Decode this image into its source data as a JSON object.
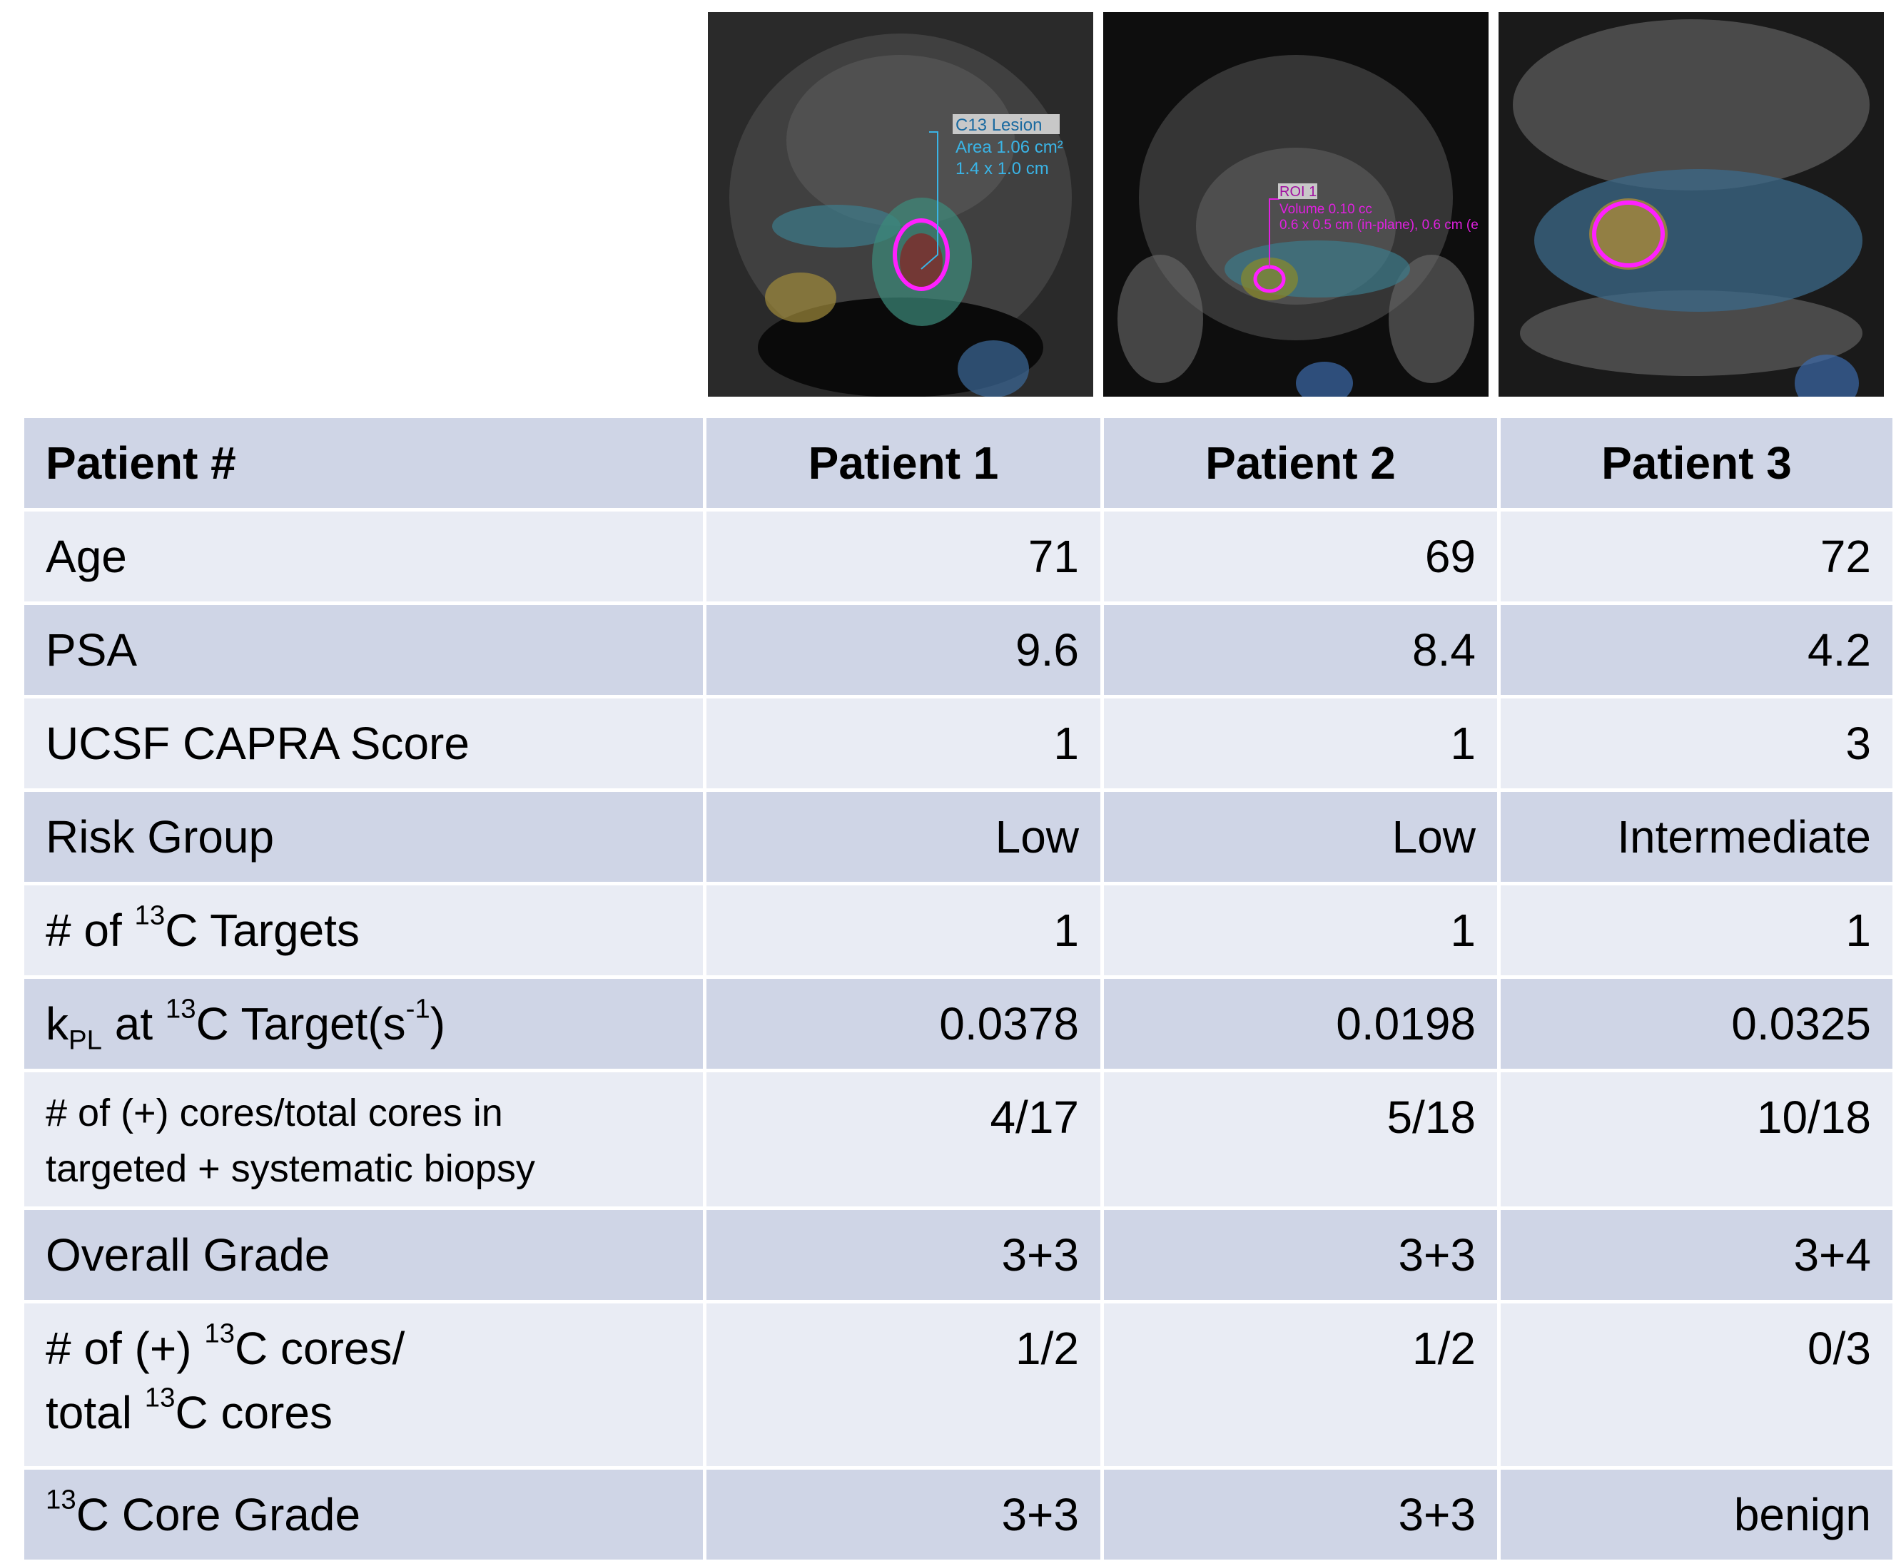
{
  "images": [
    {
      "annotations": [
        "C13 Lesion",
        "Area 1.06 cm²",
        "1.4 x 1.0 cm"
      ]
    },
    {
      "annotations": [
        "ROI 1",
        "Volume 0.10 cc",
        "0.6 x 0.5 cm (in-plane), 0.6 cm (e"
      ]
    },
    {
      "annotations": []
    }
  ],
  "table": {
    "header": [
      "Patient #",
      "Patient 1",
      "Patient 2",
      "Patient 3"
    ],
    "rows": [
      {
        "label": [
          [
            {
              "text": "Age"
            }
          ]
        ],
        "values": [
          71,
          69,
          72
        ]
      },
      {
        "label": [
          [
            {
              "text": "PSA"
            }
          ]
        ],
        "values": [
          9.6,
          8.4,
          4.2
        ]
      },
      {
        "label": [
          [
            {
              "text": "UCSF CAPRA Score"
            }
          ]
        ],
        "values": [
          1,
          1,
          3
        ]
      },
      {
        "label": [
          [
            {
              "text": "Risk Group"
            }
          ]
        ],
        "values": [
          "Low",
          "Low",
          "Intermediate"
        ]
      },
      {
        "label": [
          [
            {
              "text": "# of "
            },
            {
              "text": "13",
              "style": "sup"
            },
            {
              "text": "C Targets"
            }
          ]
        ],
        "values": [
          1,
          1,
          1
        ]
      },
      {
        "label": [
          [
            {
              "text": "k"
            },
            {
              "text": "PL",
              "style": "sub"
            },
            {
              "text": " at "
            },
            {
              "text": "13",
              "style": "sup"
            },
            {
              "text": "C Target(s"
            },
            {
              "text": "-1",
              "style": "sup"
            },
            {
              "text": ")"
            }
          ]
        ],
        "values": [
          0.0378,
          0.0198,
          0.0325
        ]
      },
      {
        "label": [
          [
            {
              "text": "# of (+) cores/total cores in"
            }
          ],
          [
            {
              "text": "targeted + systematic biopsy"
            }
          ]
        ],
        "values": [
          "4/17",
          "5/18",
          "10/18"
        ]
      },
      {
        "label": [
          [
            {
              "text": "Overall Grade"
            }
          ]
        ],
        "values": [
          "3+3",
          "3+3",
          "3+4"
        ]
      },
      {
        "label": [
          [
            {
              "text": "# of (+) "
            },
            {
              "text": "13",
              "style": "sup"
            },
            {
              "text": "C cores/"
            }
          ],
          [
            {
              "text": "total "
            },
            {
              "text": "13",
              "style": "sup"
            },
            {
              "text": "C cores"
            }
          ]
        ],
        "values": [
          "1/2",
          "1/2",
          "0/3"
        ]
      },
      {
        "label": [
          [
            {
              "text": "13",
              "style": "sup"
            },
            {
              "text": "C Core Grade"
            }
          ]
        ],
        "values": [
          "3+3",
          "3+3",
          "benign"
        ]
      }
    ]
  }
}
